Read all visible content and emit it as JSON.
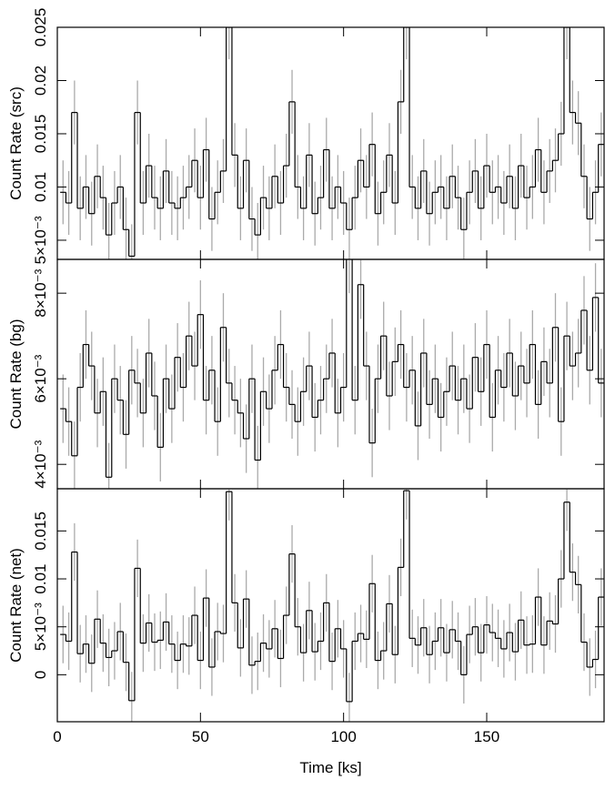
{
  "chart_data": [
    {
      "type": "step",
      "ylabel": "Count Rate (src)",
      "color": "#000000",
      "error_color": "#aaaaaa",
      "yerr": 0.003,
      "xlim": [
        0,
        191
      ],
      "ylim": [
        0.0032,
        0.025
      ],
      "yticks": [
        {
          "value": 0.005,
          "label": "5×10⁻³"
        },
        0.01,
        0.015,
        0.02,
        0.025
      ],
      "x": [
        2,
        4,
        6,
        8,
        10,
        12,
        14,
        16,
        18,
        20,
        22,
        24,
        26,
        28,
        30,
        32,
        34,
        36,
        38,
        40,
        42,
        44,
        46,
        48,
        50,
        52,
        54,
        56,
        58,
        60,
        62,
        64,
        66,
        68,
        70,
        72,
        74,
        76,
        78,
        80,
        82,
        84,
        86,
        88,
        90,
        92,
        94,
        96,
        98,
        100,
        102,
        104,
        106,
        108,
        110,
        112,
        114,
        116,
        118,
        120,
        122,
        124,
        126,
        128,
        130,
        132,
        134,
        136,
        138,
        140,
        142,
        144,
        146,
        148,
        150,
        152,
        154,
        156,
        158,
        160,
        162,
        164,
        166,
        168,
        170,
        172,
        174,
        176,
        178,
        180,
        182,
        184,
        186,
        188,
        190
      ],
      "values": [
        0.0095,
        0.0085,
        0.017,
        0.008,
        0.01,
        0.0075,
        0.011,
        0.009,
        0.0055,
        0.0085,
        0.01,
        0.006,
        0.0035,
        0.017,
        0.0085,
        0.012,
        0.009,
        0.008,
        0.0115,
        0.0085,
        0.008,
        0.009,
        0.01,
        0.0125,
        0.009,
        0.0135,
        0.007,
        0.0095,
        0.0115,
        0.025,
        0.013,
        0.008,
        0.0125,
        0.007,
        0.0055,
        0.009,
        0.008,
        0.011,
        0.0085,
        0.012,
        0.018,
        0.01,
        0.008,
        0.013,
        0.0075,
        0.009,
        0.0135,
        0.008,
        0.01,
        0.0085,
        0.006,
        0.009,
        0.0125,
        0.01,
        0.014,
        0.0075,
        0.0095,
        0.013,
        0.0085,
        0.018,
        0.025,
        0.01,
        0.008,
        0.0115,
        0.0075,
        0.0095,
        0.01,
        0.008,
        0.011,
        0.009,
        0.006,
        0.0095,
        0.0115,
        0.008,
        0.012,
        0.0095,
        0.01,
        0.0085,
        0.011,
        0.008,
        0.012,
        0.009,
        0.01,
        0.0135,
        0.0095,
        0.0115,
        0.0125,
        0.015,
        0.025,
        0.017,
        0.016,
        0.011,
        0.007,
        0.0095,
        0.014
      ]
    },
    {
      "type": "step",
      "ylabel": "Count Rate (bg)",
      "color": "#000000",
      "error_color": "#aaaaaa",
      "yerr": 0.0008,
      "xlim": [
        0,
        191
      ],
      "ylim": [
        0.00343,
        0.00879
      ],
      "yticks": [
        {
          "value": 0.004,
          "label": "4×10⁻³"
        },
        {
          "value": 0.006,
          "label": "6×10⁻³"
        },
        {
          "value": 0.008,
          "label": "8×10⁻³"
        }
      ],
      "x": [
        2,
        4,
        6,
        8,
        10,
        12,
        14,
        16,
        18,
        20,
        22,
        24,
        26,
        28,
        30,
        32,
        34,
        36,
        38,
        40,
        42,
        44,
        46,
        48,
        50,
        52,
        54,
        56,
        58,
        60,
        62,
        64,
        66,
        68,
        70,
        72,
        74,
        76,
        78,
        80,
        82,
        84,
        86,
        88,
        90,
        92,
        94,
        96,
        98,
        100,
        102,
        104,
        106,
        108,
        110,
        112,
        114,
        116,
        118,
        120,
        122,
        124,
        126,
        128,
        130,
        132,
        134,
        136,
        138,
        140,
        142,
        144,
        146,
        148,
        150,
        152,
        154,
        156,
        158,
        160,
        162,
        164,
        166,
        168,
        170,
        172,
        174,
        176,
        178,
        180,
        182,
        184,
        186,
        188,
        190
      ],
      "values": [
        0.0053,
        0.005,
        0.0042,
        0.0058,
        0.0068,
        0.0063,
        0.0052,
        0.0057,
        0.0037,
        0.006,
        0.0055,
        0.0047,
        0.0062,
        0.0059,
        0.0052,
        0.0066,
        0.0056,
        0.0044,
        0.006,
        0.0053,
        0.0065,
        0.0058,
        0.007,
        0.0063,
        0.0075,
        0.0055,
        0.0062,
        0.005,
        0.0072,
        0.0059,
        0.0055,
        0.0052,
        0.0046,
        0.006,
        0.0041,
        0.0057,
        0.0053,
        0.0062,
        0.0068,
        0.0058,
        0.0054,
        0.005,
        0.0057,
        0.0063,
        0.0051,
        0.0055,
        0.006,
        0.0066,
        0.0052,
        0.0058,
        0.0088,
        0.0055,
        0.0082,
        0.0063,
        0.0045,
        0.006,
        0.007,
        0.0056,
        0.0064,
        0.0068,
        0.0058,
        0.0062,
        0.0049,
        0.0066,
        0.0054,
        0.006,
        0.0051,
        0.0057,
        0.0063,
        0.0055,
        0.006,
        0.0053,
        0.0065,
        0.0057,
        0.0068,
        0.0051,
        0.0062,
        0.0058,
        0.0066,
        0.0056,
        0.0063,
        0.0059,
        0.0068,
        0.0054,
        0.0064,
        0.0059,
        0.0072,
        0.005,
        0.007,
        0.0063,
        0.0066,
        0.0076,
        0.0062,
        0.0079,
        0.0059
      ]
    },
    {
      "type": "step",
      "ylabel": "Count Rate (net)",
      "xlabel": "Time [ks]",
      "color": "#000000",
      "error_color": "#aaaaaa",
      "yerr": 0.003,
      "xlim": [
        0,
        191
      ],
      "ylim": [
        -0.0049,
        0.0194
      ],
      "xticks": [
        0,
        50,
        100,
        150
      ],
      "yticks": [
        0,
        {
          "value": 0.005,
          "label": "5×10⁻³"
        },
        0.01,
        0.015
      ],
      "x": [
        2,
        4,
        6,
        8,
        10,
        12,
        14,
        16,
        18,
        20,
        22,
        24,
        26,
        28,
        30,
        32,
        34,
        36,
        38,
        40,
        42,
        44,
        46,
        48,
        50,
        52,
        54,
        56,
        58,
        60,
        62,
        64,
        66,
        68,
        70,
        72,
        74,
        76,
        78,
        80,
        82,
        84,
        86,
        88,
        90,
        92,
        94,
        96,
        98,
        100,
        102,
        104,
        106,
        108,
        110,
        112,
        114,
        116,
        118,
        120,
        122,
        124,
        126,
        128,
        130,
        132,
        134,
        136,
        138,
        140,
        142,
        144,
        146,
        148,
        150,
        152,
        154,
        156,
        158,
        160,
        162,
        164,
        166,
        168,
        170,
        172,
        174,
        176,
        178,
        180,
        182,
        184,
        186,
        188,
        190
      ],
      "values": [
        0.0042,
        0.0035,
        0.0128,
        0.0022,
        0.0032,
        0.0012,
        0.0058,
        0.0033,
        0.0018,
        0.0025,
        0.0045,
        0.0013,
        -0.0027,
        0.0111,
        0.0033,
        0.0054,
        0.0034,
        0.0036,
        0.0055,
        0.0032,
        0.0015,
        0.0032,
        0.003,
        0.0062,
        0.0015,
        0.008,
        0.0008,
        0.0045,
        0.0043,
        0.0191,
        0.0075,
        0.0028,
        0.0079,
        0.001,
        0.0014,
        0.0033,
        0.0027,
        0.0048,
        0.0017,
        0.0062,
        0.0126,
        0.005,
        0.0023,
        0.0067,
        0.0024,
        0.0035,
        0.0075,
        0.0014,
        0.0048,
        0.0027,
        -0.0028,
        0.0035,
        0.0043,
        0.0037,
        0.0095,
        0.0015,
        0.0025,
        0.0074,
        0.0021,
        0.0112,
        0.0192,
        0.0038,
        0.0031,
        0.0049,
        0.0021,
        0.0035,
        0.0049,
        0.0023,
        0.0047,
        0.0035,
        0.0,
        0.0042,
        0.005,
        0.0023,
        0.0052,
        0.0044,
        0.0038,
        0.0027,
        0.0044,
        0.0024,
        0.0057,
        0.0031,
        0.0032,
        0.0081,
        0.0031,
        0.0056,
        0.0053,
        0.01,
        0.018,
        0.0107,
        0.0094,
        0.0034,
        0.0008,
        0.0016,
        0.0081
      ]
    }
  ]
}
